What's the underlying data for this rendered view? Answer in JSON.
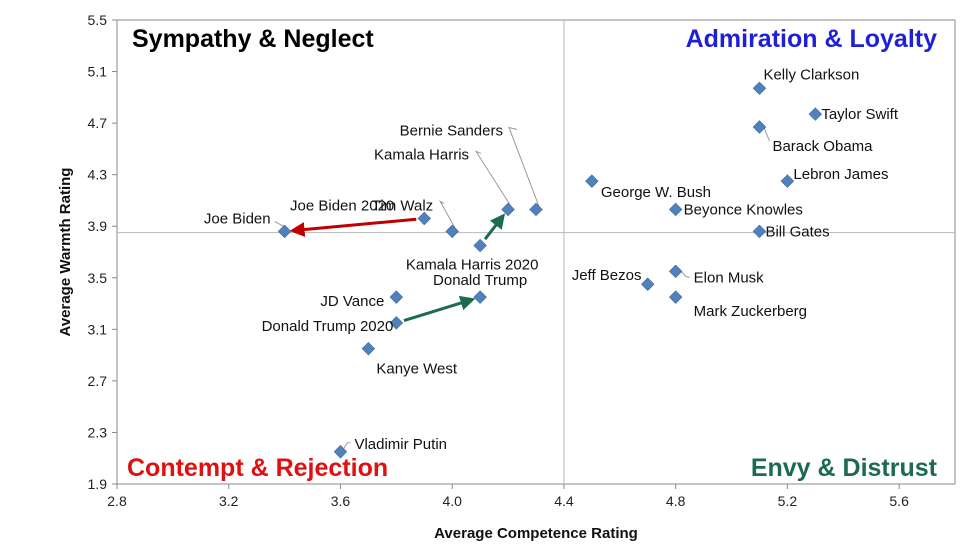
{
  "chart_data": {
    "type": "scatter",
    "xlabel": "Average Competence Rating",
    "ylabel": "Average Warmth Rating",
    "xlim": [
      2.8,
      5.8
    ],
    "ylim": [
      1.9,
      5.5
    ],
    "x_ticks": [
      "2.8",
      "3.2",
      "3.6",
      "4.0",
      "4.4",
      "4.8",
      "5.2",
      "5.6"
    ],
    "y_ticks": [
      "1.9",
      "2.3",
      "2.7",
      "3.1",
      "3.5",
      "3.9",
      "4.3",
      "4.7",
      "5.1",
      "5.5"
    ],
    "divider": {
      "x": 4.4,
      "y": 3.85
    },
    "quadrants": [
      {
        "label": "Sympathy & Neglect",
        "position": "top-left",
        "color": "#000000"
      },
      {
        "label": "Admiration & Loyalty",
        "position": "top-right",
        "color": "#1f1fd6"
      },
      {
        "label": "Contempt & Rejection",
        "position": "bottom-left",
        "color": "#e01010"
      },
      {
        "label": "Envy & Distrust",
        "position": "bottom-right",
        "color": "#1d6b4f"
      }
    ],
    "marker_color": "#4f81bd",
    "points": [
      {
        "name": "Kelly Clarkson",
        "x": 5.1,
        "y": 4.97
      },
      {
        "name": "Taylor Swift",
        "x": 5.3,
        "y": 4.77
      },
      {
        "name": "Barack Obama",
        "x": 5.1,
        "y": 4.67
      },
      {
        "name": "Lebron James",
        "x": 5.2,
        "y": 4.25
      },
      {
        "name": "George W. Bush",
        "x": 4.5,
        "y": 4.25
      },
      {
        "name": "Beyonce Knowles",
        "x": 4.8,
        "y": 4.03
      },
      {
        "name": "Bill Gates",
        "x": 5.1,
        "y": 3.86
      },
      {
        "name": "Bernie Sanders",
        "x": 4.3,
        "y": 4.03
      },
      {
        "name": "Kamala Harris",
        "x": 4.2,
        "y": 4.03
      },
      {
        "name": "Tim Walz",
        "x": 4.0,
        "y": 3.86
      },
      {
        "name": "Joe Biden 2020",
        "x": 3.9,
        "y": 3.96
      },
      {
        "name": "Joe Biden",
        "x": 3.4,
        "y": 3.86
      },
      {
        "name": "Kamala Harris 2020",
        "x": 4.1,
        "y": 3.75
      },
      {
        "name": "Donald Trump",
        "x": 4.1,
        "y": 3.35
      },
      {
        "name": "JD Vance",
        "x": 3.8,
        "y": 3.35
      },
      {
        "name": "Donald Trump 2020",
        "x": 3.8,
        "y": 3.15
      },
      {
        "name": "Kanye West",
        "x": 3.7,
        "y": 2.95
      },
      {
        "name": "Jeff Bezos",
        "x": 4.7,
        "y": 3.45
      },
      {
        "name": "Elon Musk",
        "x": 4.8,
        "y": 3.55
      },
      {
        "name": "Mark Zuckerberg",
        "x": 4.8,
        "y": 3.35
      },
      {
        "name": "Vladimir Putin",
        "x": 3.6,
        "y": 2.15
      }
    ],
    "arrows": [
      {
        "from": "Joe Biden 2020",
        "to": "Joe Biden",
        "color": "#c00000"
      },
      {
        "from": "Kamala Harris 2020",
        "to": "Kamala Harris",
        "color": "#1d6b4f"
      },
      {
        "from": "Donald Trump 2020",
        "to": "Donald Trump",
        "color": "#1d6b4f"
      }
    ],
    "grid": false,
    "legend": "none"
  }
}
